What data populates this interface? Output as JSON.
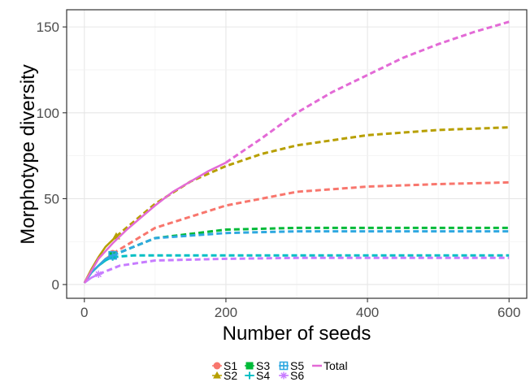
{
  "chart_data": {
    "type": "line",
    "title": "",
    "xlabel": "Number of seeds",
    "ylabel": "Morphotype diversity",
    "xlim": [
      -25,
      625
    ],
    "ylim": [
      -8,
      160
    ],
    "xticks": [
      0,
      200,
      400,
      600
    ],
    "yticks": [
      0,
      50,
      100,
      150
    ],
    "grid": true,
    "legend_position": "bottom",
    "series": [
      {
        "name": "S1",
        "color": "#F8766D",
        "marker": "circle",
        "observed": [
          [
            0,
            1
          ],
          [
            10,
            7
          ],
          [
            20,
            11
          ],
          [
            30,
            15
          ],
          [
            40,
            18
          ]
        ],
        "extrapolated": [
          [
            40,
            18
          ],
          [
            100,
            33
          ],
          [
            200,
            46
          ],
          [
            300,
            54
          ],
          [
            400,
            57
          ],
          [
            500,
            58.5
          ],
          [
            600,
            59.5
          ]
        ]
      },
      {
        "name": "S2",
        "color": "#B79F00",
        "marker": "triangle",
        "observed": [
          [
            0,
            1
          ],
          [
            10,
            9
          ],
          [
            20,
            16
          ],
          [
            30,
            22
          ],
          [
            45,
            28
          ]
        ],
        "extrapolated": [
          [
            45,
            28
          ],
          [
            100,
            47
          ],
          [
            150,
            60
          ],
          [
            200,
            69
          ],
          [
            250,
            76
          ],
          [
            300,
            81
          ],
          [
            400,
            87
          ],
          [
            500,
            90
          ],
          [
            600,
            91.5
          ]
        ]
      },
      {
        "name": "S3",
        "color": "#00BA38",
        "marker": "square",
        "observed": [
          [
            0,
            1
          ],
          [
            10,
            7
          ],
          [
            20,
            11
          ],
          [
            30,
            14
          ],
          [
            40,
            17
          ]
        ],
        "extrapolated": [
          [
            40,
            17
          ],
          [
            100,
            27
          ],
          [
            200,
            32
          ],
          [
            300,
            33
          ],
          [
            400,
            33
          ],
          [
            500,
            33
          ],
          [
            600,
            33
          ]
        ]
      },
      {
        "name": "S4",
        "color": "#00BFC4",
        "marker": "plus",
        "observed": [
          [
            0,
            1
          ],
          [
            10,
            7
          ],
          [
            20,
            11
          ],
          [
            30,
            14
          ],
          [
            40,
            16
          ]
        ],
        "extrapolated": [
          [
            40,
            16
          ],
          [
            70,
            17
          ],
          [
            100,
            17
          ],
          [
            200,
            17
          ],
          [
            300,
            17
          ],
          [
            400,
            17
          ],
          [
            500,
            17
          ],
          [
            600,
            17
          ]
        ]
      },
      {
        "name": "S5",
        "color": "#2EA8E0",
        "marker": "square-cross",
        "observed": [
          [
            0,
            1
          ],
          [
            10,
            7
          ],
          [
            20,
            11
          ],
          [
            30,
            15
          ],
          [
            40,
            17
          ]
        ],
        "extrapolated": [
          [
            40,
            17
          ],
          [
            100,
            27
          ],
          [
            200,
            30
          ],
          [
            300,
            31
          ],
          [
            400,
            31
          ],
          [
            500,
            31
          ],
          [
            600,
            31
          ]
        ]
      },
      {
        "name": "S6",
        "color": "#C77CFF",
        "marker": "asterisk",
        "observed": [
          [
            0,
            1
          ],
          [
            10,
            4
          ],
          [
            20,
            6
          ]
        ],
        "extrapolated": [
          [
            20,
            6
          ],
          [
            50,
            11
          ],
          [
            100,
            14
          ],
          [
            200,
            15
          ],
          [
            300,
            15.5
          ],
          [
            400,
            15.5
          ],
          [
            500,
            15.5
          ],
          [
            600,
            15.5
          ]
        ]
      },
      {
        "name": "Total",
        "color": "#E36AD6",
        "marker": "none",
        "observed": [
          [
            0,
            1
          ],
          [
            10,
            8
          ],
          [
            20,
            15
          ],
          [
            40,
            24
          ],
          [
            60,
            32
          ],
          [
            80,
            39
          ],
          [
            100,
            46
          ],
          [
            125,
            54
          ],
          [
            150,
            60
          ],
          [
            175,
            66
          ],
          [
            200,
            71
          ]
        ],
        "extrapolated": [
          [
            200,
            71
          ],
          [
            250,
            85
          ],
          [
            300,
            100
          ],
          [
            350,
            112
          ],
          [
            400,
            122
          ],
          [
            450,
            132
          ],
          [
            500,
            140
          ],
          [
            550,
            147
          ],
          [
            600,
            153
          ]
        ]
      }
    ]
  }
}
